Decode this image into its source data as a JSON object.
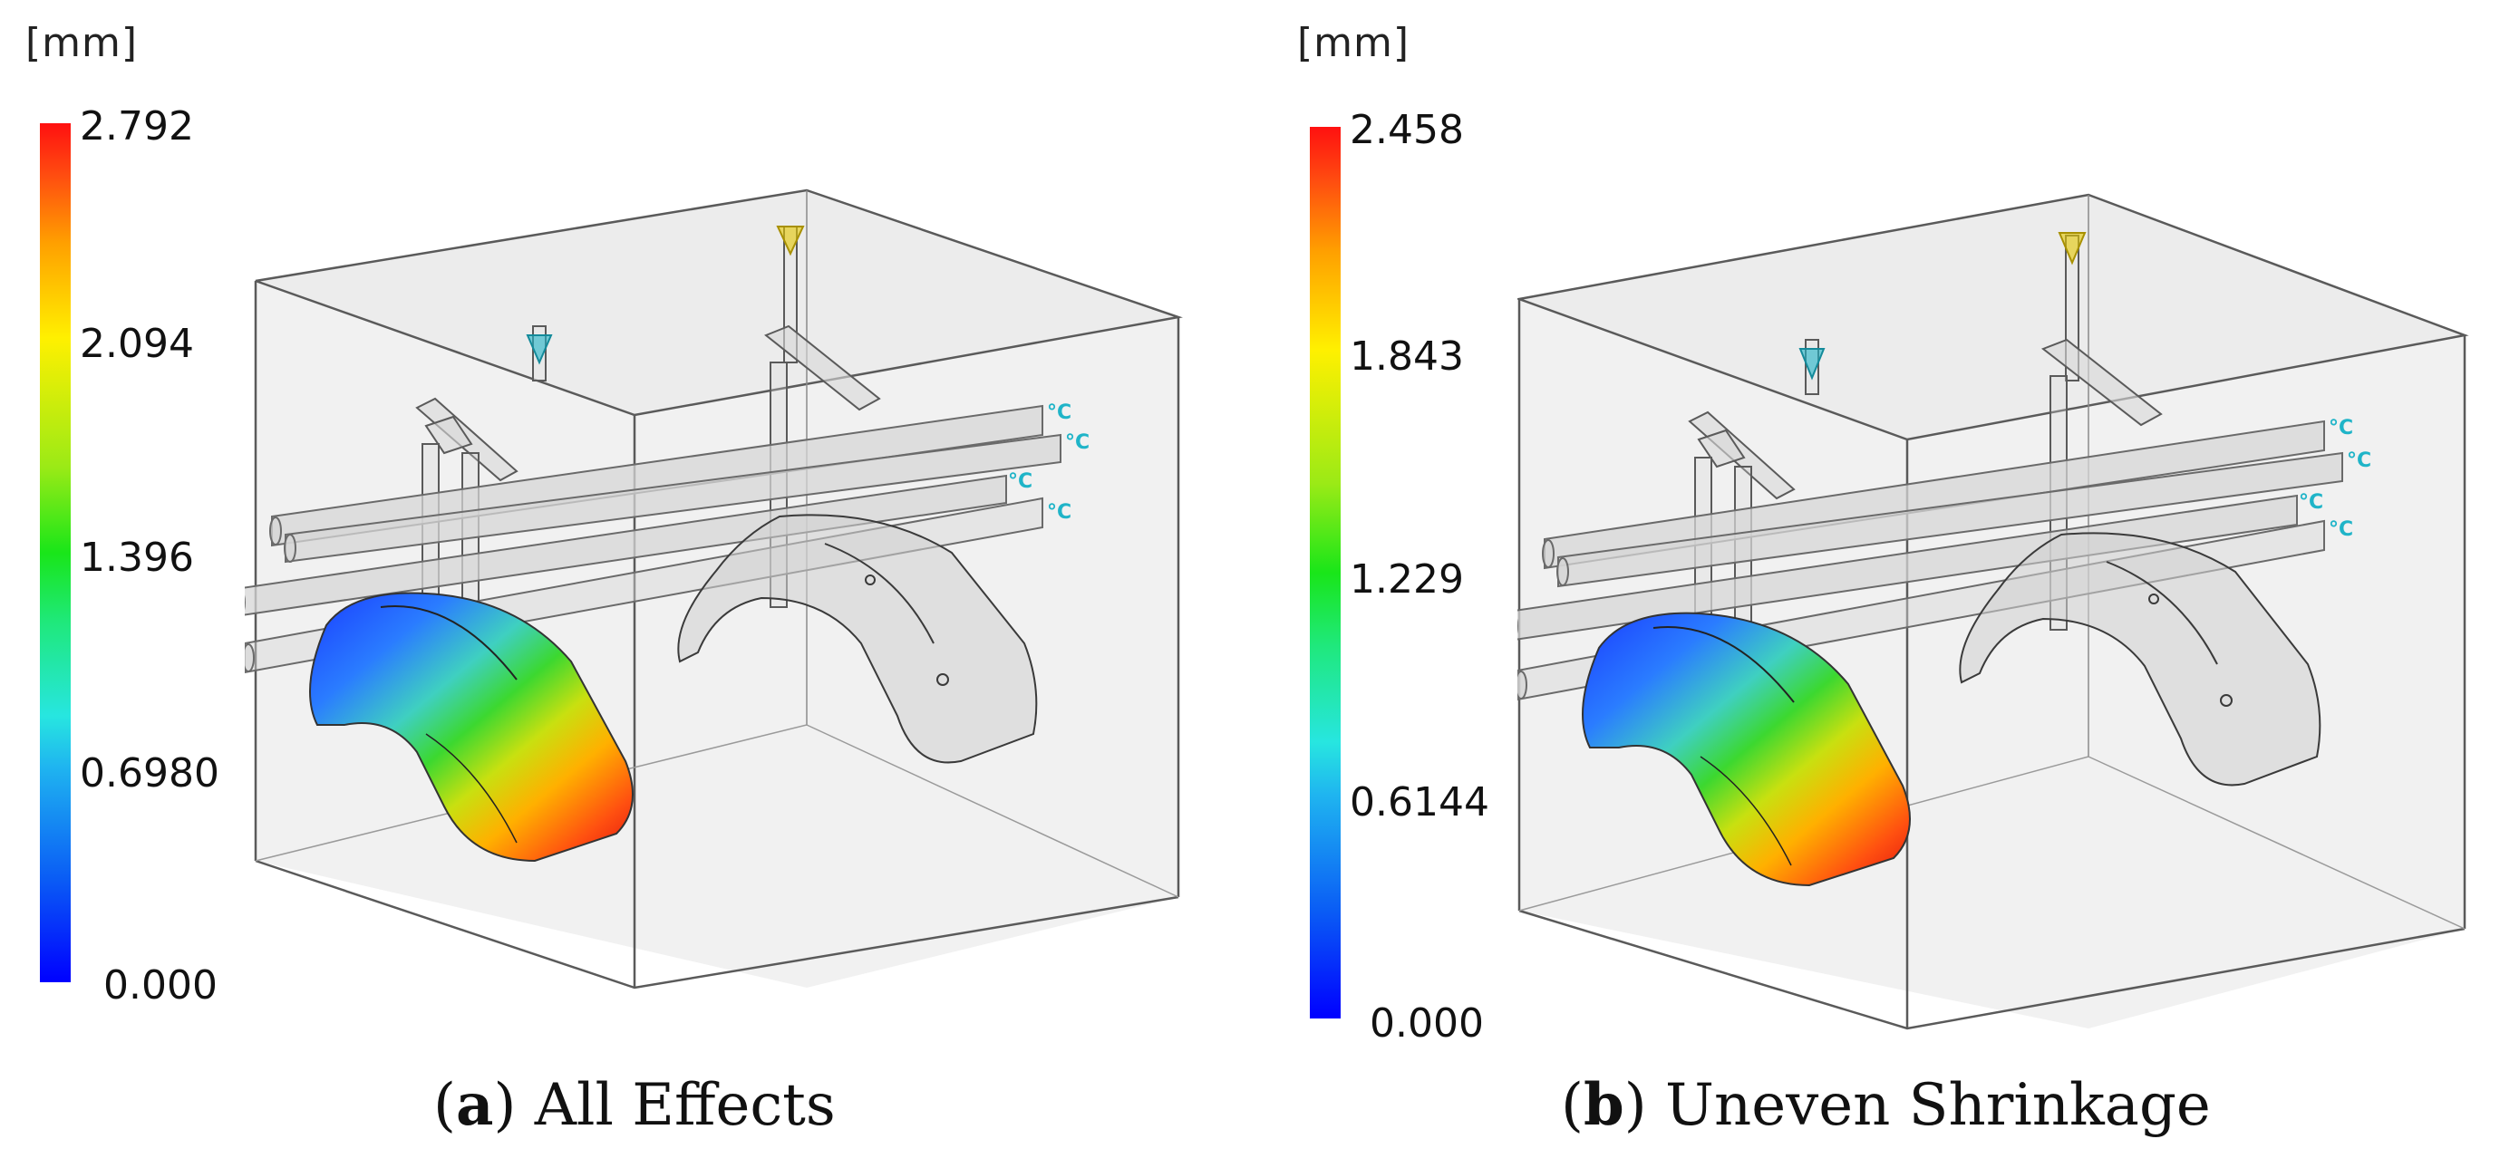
{
  "panels": [
    {
      "unit": "[mm]",
      "scale_ticks": [
        "2.792",
        "2.094",
        "1.396",
        "0.6980",
        "0.000"
      ],
      "caption_letter": "a",
      "caption_text": "All Effects"
    },
    {
      "unit": "[mm]",
      "scale_ticks": [
        "2.458",
        "1.843",
        "1.229",
        "0.6144",
        "0.000"
      ],
      "caption_letter": "b",
      "caption_text": "Uneven Shrinkage"
    }
  ],
  "coolant_marker": "°C",
  "colors": {
    "scale_max": "#ff1010",
    "scale_mid": "#19e619",
    "scale_min": "#0000ff",
    "coolant_marker": "#1fb4c8",
    "inlet_marker": "#1fb4c8",
    "injection_marker": "#e6c800"
  }
}
